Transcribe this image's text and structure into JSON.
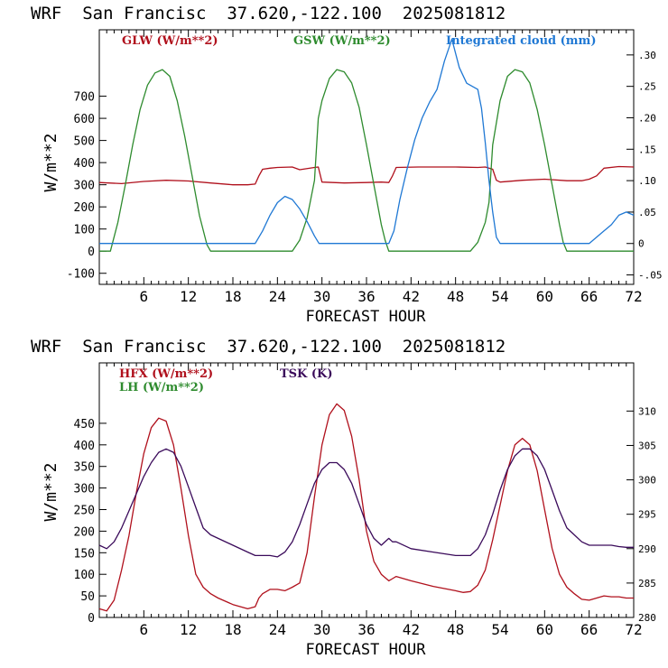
{
  "colors": {
    "red": "#b0101c",
    "green": "#2e8b2e",
    "blue": "#1f78d4",
    "purple": "#3a0a5a",
    "axis": "#000000"
  },
  "chart_data": [
    {
      "type": "line",
      "title": "WRF  San Francisc  37.620,-122.100  2025081812",
      "xlabel": "FORECAST HOUR",
      "ylabel": "W/m**2",
      "xlim": [
        0,
        72
      ],
      "ylim": [
        -150,
        1000
      ],
      "y2lim": [
        -0.065,
        0.34
      ],
      "xticks": [
        6,
        12,
        18,
        24,
        30,
        36,
        42,
        48,
        54,
        60,
        66,
        72
      ],
      "yticks": [
        -100,
        0,
        100,
        200,
        300,
        400,
        500,
        600,
        700
      ],
      "y2ticks": [
        -0.05,
        0,
        0.05,
        0.1,
        0.15,
        0.2,
        0.25,
        0.3
      ],
      "ytick_labels": [
        "-100",
        "0",
        "100",
        "200",
        "300",
        "400",
        "500",
        "600",
        "700"
      ],
      "y2tick_labels": [
        "-.05",
        "0",
        ".05",
        ".10",
        ".15",
        ".20",
        ".25",
        ".30"
      ],
      "series": [
        {
          "name": "GLW (W/m**2)",
          "axis": "left",
          "color_key": "red",
          "x": [
            0,
            3,
            6,
            9,
            12,
            15,
            18,
            20,
            21,
            21.5,
            22,
            23,
            24,
            26,
            27,
            29,
            29.5,
            30,
            33,
            36,
            38,
            39,
            39.5,
            40,
            43,
            46,
            48,
            51,
            52,
            53,
            53.5,
            54,
            57,
            60,
            63,
            65,
            66,
            67,
            68,
            70,
            72
          ],
          "y": [
            310,
            305,
            315,
            320,
            317,
            308,
            300,
            300,
            303,
            340,
            370,
            375,
            378,
            380,
            368,
            378,
            380,
            312,
            308,
            310,
            312,
            310,
            340,
            378,
            380,
            380,
            380,
            378,
            380,
            370,
            320,
            312,
            320,
            325,
            318,
            318,
            325,
            340,
            375,
            382,
            380
          ]
        },
        {
          "name": "GSW (W/m**2)",
          "axis": "left",
          "color_key": "green",
          "x": [
            0,
            1.5,
            2.5,
            3.5,
            4.5,
            5.5,
            6.5,
            7.5,
            8.5,
            9.5,
            10.5,
            11.5,
            12.5,
            13.5,
            14.5,
            15,
            26,
            27,
            28,
            29,
            29.5,
            30,
            31,
            32,
            33,
            34,
            35,
            36,
            37,
            38,
            38.5,
            39,
            50,
            51,
            52,
            52.5,
            53,
            54,
            55,
            56,
            57,
            58,
            59,
            60,
            61,
            62,
            62.5,
            63,
            72
          ],
          "y": [
            0,
            0,
            130,
            300,
            480,
            640,
            750,
            805,
            820,
            790,
            680,
            520,
            340,
            160,
            30,
            0,
            0,
            50,
            150,
            320,
            600,
            680,
            780,
            820,
            810,
            760,
            650,
            480,
            300,
            120,
            50,
            0,
            0,
            40,
            130,
            220,
            480,
            680,
            790,
            820,
            810,
            760,
            640,
            480,
            300,
            120,
            40,
            0,
            0
          ]
        },
        {
          "name": "Integrated cloud (mm)",
          "axis": "right",
          "color_key": "blue",
          "x": [
            0,
            21,
            22,
            23,
            24,
            25,
            26,
            27,
            28,
            29,
            29.6,
            30,
            39,
            39.7,
            40.5,
            41.5,
            42.5,
            43.5,
            44.5,
            45.5,
            46.5,
            47.5,
            48.5,
            49.5,
            51,
            51.5,
            52,
            52.5,
            53,
            53.5,
            54,
            66,
            67,
            68,
            69,
            70,
            71,
            72
          ],
          "y": [
            0,
            0,
            0.02,
            0.045,
            0.065,
            0.075,
            0.07,
            0.055,
            0.035,
            0.012,
            0,
            0,
            0,
            0.02,
            0.07,
            0.12,
            0.165,
            0.2,
            0.225,
            0.245,
            0.29,
            0.325,
            0.28,
            0.255,
            0.245,
            0.215,
            0.16,
            0.1,
            0.05,
            0.01,
            0,
            0,
            0.01,
            0.02,
            0.03,
            0.045,
            0.05,
            0.045
          ]
        }
      ]
    },
    {
      "type": "line",
      "title": "WRF  San Francisc  37.620,-122.100  2025081812",
      "xlabel": "FORECAST HOUR",
      "ylabel": "W/m**2",
      "xlim": [
        0,
        72
      ],
      "ylim": [
        0,
        590
      ],
      "y2lim": [
        280,
        317
      ],
      "xticks": [
        6,
        12,
        18,
        24,
        30,
        36,
        42,
        48,
        54,
        60,
        66,
        72
      ],
      "yticks": [
        0,
        50,
        100,
        150,
        200,
        250,
        300,
        350,
        400,
        450
      ],
      "y2ticks": [
        280,
        285,
        290,
        295,
        300,
        305,
        310
      ],
      "ytick_labels": [
        "0",
        "50",
        "100",
        "150",
        "200",
        "250",
        "300",
        "350",
        "400",
        "450"
      ],
      "y2tick_labels": [
        "280",
        "285",
        "290",
        "295",
        "300",
        "305",
        "310"
      ],
      "series": [
        {
          "name": "HFX (W/m**2)",
          "axis": "left",
          "color_key": "red",
          "x": [
            0,
            1,
            2,
            3,
            4,
            5,
            6,
            7,
            8,
            9,
            10,
            11,
            12,
            13,
            14,
            15,
            16,
            18,
            20,
            21,
            21.5,
            22,
            23,
            24,
            25,
            26,
            27,
            28,
            29,
            30,
            31,
            32,
            33,
            34,
            35,
            36,
            37,
            38,
            39,
            39.5,
            40,
            42,
            45,
            48,
            49,
            50,
            51,
            52,
            53,
            54,
            55,
            56,
            57,
            58,
            59,
            60,
            61,
            62,
            63,
            64,
            65,
            66,
            67,
            68,
            69,
            70,
            71,
            72
          ],
          "y": [
            20,
            15,
            40,
            110,
            190,
            290,
            380,
            440,
            462,
            455,
            400,
            300,
            190,
            100,
            70,
            55,
            45,
            30,
            20,
            25,
            45,
            55,
            65,
            65,
            62,
            70,
            80,
            150,
            280,
            400,
            470,
            495,
            480,
            420,
            320,
            200,
            130,
            100,
            85,
            90,
            95,
            85,
            72,
            62,
            58,
            60,
            75,
            110,
            180,
            260,
            340,
            400,
            415,
            400,
            340,
            250,
            160,
            100,
            70,
            55,
            42,
            40,
            45,
            50,
            48,
            48,
            45,
            45
          ]
        },
        {
          "name": "LH (W/m**2)",
          "axis": "left",
          "color_key": "green",
          "x": [],
          "y": []
        },
        {
          "name": "TSK (K)",
          "axis": "right",
          "color_key": "purple",
          "x": [
            0,
            1,
            2,
            3,
            4,
            5,
            6,
            7,
            8,
            9,
            10,
            11,
            12,
            13,
            14,
            15,
            16,
            18,
            20,
            21,
            22,
            23,
            24,
            25,
            26,
            27,
            28,
            29,
            30,
            31,
            32,
            33,
            34,
            35,
            36,
            37,
            38,
            39,
            39.5,
            40,
            42,
            45,
            48,
            50,
            51,
            52,
            53,
            54,
            55,
            56,
            57,
            58,
            59,
            60,
            61,
            62,
            63,
            64,
            65,
            66,
            67,
            68,
            69,
            70,
            71,
            72
          ],
          "y": [
            290.5,
            290,
            291,
            293,
            295.5,
            298,
            300.5,
            302.5,
            304,
            304.5,
            304,
            302,
            299,
            296,
            293,
            292,
            291.5,
            290.5,
            289.5,
            289,
            289,
            289,
            288.8,
            289.5,
            291,
            293.5,
            296.5,
            299.5,
            301.5,
            302.5,
            302.5,
            301.5,
            299.5,
            296.5,
            293.5,
            291.5,
            290.5,
            291.5,
            291,
            291,
            290,
            289.5,
            289,
            289,
            290,
            292,
            295,
            298.5,
            301.5,
            303.5,
            304.5,
            304.5,
            303.5,
            301.5,
            298.5,
            295.5,
            293,
            292,
            291,
            290.5,
            290.5,
            290.5,
            290.5,
            290.3,
            290.2,
            290.2
          ]
        }
      ]
    }
  ]
}
